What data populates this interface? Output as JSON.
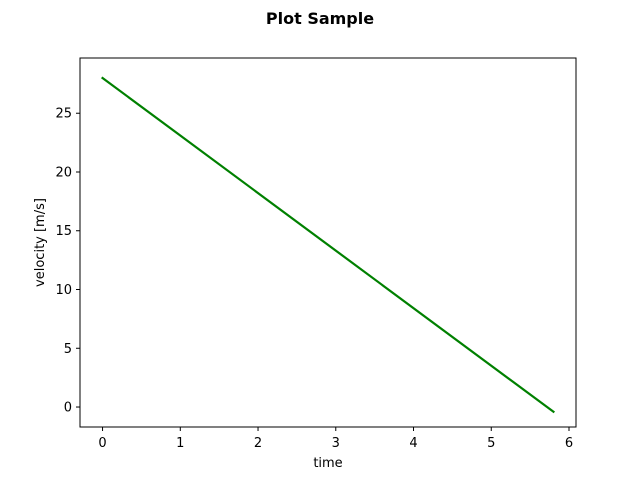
{
  "chart_data": {
    "type": "line",
    "title": "Plot Sample",
    "xlabel": "time",
    "ylabel": "velocity [m/s]",
    "xlim": [
      -0.29,
      6.09
    ],
    "ylim": [
      -1.7,
      29.7
    ],
    "xticks": [
      0,
      1,
      2,
      3,
      4,
      5,
      6
    ],
    "yticks": [
      0,
      5,
      10,
      15,
      20,
      25
    ],
    "grid": false,
    "series": [
      {
        "color": "#008000",
        "x": [
          0,
          5.8
        ],
        "y": [
          28,
          -0.4
        ]
      }
    ]
  }
}
